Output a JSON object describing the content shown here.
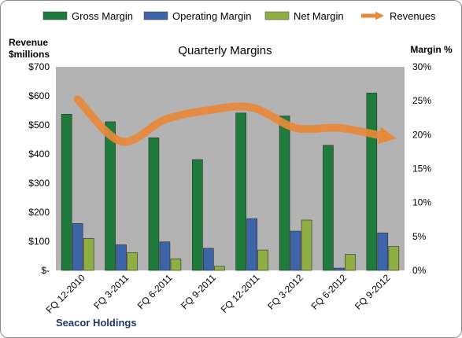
{
  "chart_data": {
    "type": "bar",
    "title": "Quarterly Margins",
    "categories": [
      "FQ 12-2010",
      "FQ 3-2011",
      "FQ 6-2011",
      "FQ 9-2011",
      "FQ 12-2011",
      "FQ 3-2012",
      "FQ 6-2012",
      "FQ 9-2012"
    ],
    "series": [
      {
        "name": "Gross Margin",
        "axis": "left",
        "color": "#1e7b3c",
        "values": [
          537,
          511,
          456,
          381,
          541,
          531,
          430,
          610
        ]
      },
      {
        "name": "Operating Margin",
        "axis": "left",
        "color": "#3e64a8",
        "values": [
          161,
          88,
          98,
          76,
          178,
          135,
          8,
          129
        ]
      },
      {
        "name": "Net Margin",
        "axis": "left",
        "color": "#8fae43",
        "values": [
          110,
          61,
          40,
          14,
          70,
          173,
          55,
          82
        ]
      },
      {
        "name": "Revenues",
        "type": "line",
        "axis": "right",
        "color": "#e8893a",
        "values": [
          25.2,
          19.0,
          22.2,
          23.6,
          24.0,
          21.0,
          21.0,
          19.8
        ]
      }
    ],
    "y_left": {
      "label_line1": "Revenue",
      "label_line2": "$millions",
      "ylim": [
        0,
        700
      ],
      "ticks": [
        "$-",
        "$100",
        "$200",
        "$300",
        "$400",
        "$500",
        "$600",
        "$700"
      ]
    },
    "y_right": {
      "label": "Margin %",
      "ylim": [
        0,
        30
      ],
      "ticks": [
        "0%",
        "5%",
        "10%",
        "15%",
        "20%",
        "25%",
        "30%"
      ]
    },
    "grid": false,
    "legend": "top",
    "plot_background": "#b3b3b3",
    "footer": "Seacor Holdings"
  }
}
